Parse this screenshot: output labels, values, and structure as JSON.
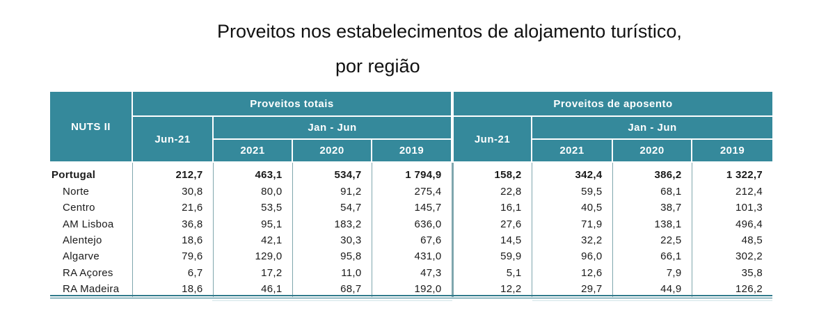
{
  "title": {
    "line1": "Proveitos nos estabelecimentos de alojamento turístico,",
    "line2": "por região"
  },
  "header": {
    "nuts": "NUTS II",
    "group1": "Proveitos totais",
    "group2": "Proveitos de aposento",
    "month": "Jun-21",
    "period": "Jan - Jun",
    "years": [
      "2021",
      "2020",
      "2019"
    ]
  },
  "rows": [
    {
      "name": "Portugal",
      "values": [
        "212,7",
        "463,1",
        "534,7",
        "1 794,9",
        "158,2",
        "342,4",
        "386,2",
        "1 322,7"
      ]
    },
    {
      "name": "Norte",
      "values": [
        "30,8",
        "80,0",
        "91,2",
        "275,4",
        "22,8",
        "59,5",
        "68,1",
        "212,4"
      ]
    },
    {
      "name": "Centro",
      "values": [
        "21,6",
        "53,5",
        "54,7",
        "145,7",
        "16,1",
        "40,5",
        "38,7",
        "101,3"
      ]
    },
    {
      "name": "AM Lisboa",
      "values": [
        "36,8",
        "95,1",
        "183,2",
        "636,0",
        "27,6",
        "71,9",
        "138,1",
        "496,4"
      ]
    },
    {
      "name": "Alentejo",
      "values": [
        "18,6",
        "42,1",
        "30,3",
        "67,6",
        "14,5",
        "32,2",
        "22,5",
        "48,5"
      ]
    },
    {
      "name": "Algarve",
      "values": [
        "79,6",
        "129,0",
        "95,8",
        "431,0",
        "59,9",
        "96,0",
        "66,1",
        "302,2"
      ]
    },
    {
      "name": "RA Açores",
      "values": [
        "6,7",
        "17,2",
        "11,0",
        "47,3",
        "5,1",
        "12,6",
        "7,9",
        "35,8"
      ]
    },
    {
      "name": "RA Madeira",
      "values": [
        "18,6",
        "46,1",
        "68,7",
        "192,0",
        "12,2",
        "29,7",
        "44,9",
        "126,2"
      ]
    }
  ]
}
